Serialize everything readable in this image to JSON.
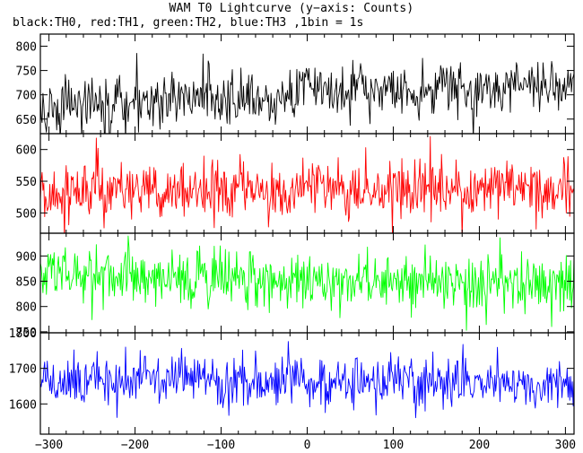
{
  "title": "WAM T0 Lightcurve (y−axis: Counts)",
  "subtitle": "black:TH0, red:TH1, green:TH2, blue:TH3 ,1bin = 1s",
  "chart_data": [
    {
      "type": "line",
      "title": "",
      "series": [
        {
          "name": "TH0",
          "color": "#000000",
          "profile": {
            "x": [
              -305,
              -250,
              -150,
              -50,
              0,
              100,
              200,
              310
            ],
            "mean": [
              672,
              680,
              690,
              693,
              715,
              705,
              710,
              720
            ]
          },
          "noise_sd": 28
        }
      ],
      "xlim": [
        -310,
        310
      ],
      "ylim": [
        620,
        825
      ],
      "yticks": [
        650,
        700,
        750,
        800
      ],
      "xlabel": "",
      "ylabel": ""
    },
    {
      "type": "line",
      "title": "",
      "series": [
        {
          "name": "TH1",
          "color": "#ff0000",
          "profile": {
            "x": [
              -305,
              0,
              310
            ],
            "mean": [
              535,
              537,
              535
            ]
          },
          "noise_sd": 22
        }
      ],
      "xlim": [
        -310,
        310
      ],
      "ylim": [
        468,
        625
      ],
      "yticks": [
        500,
        550,
        600
      ],
      "xlabel": "",
      "ylabel": ""
    },
    {
      "type": "line",
      "title": "",
      "series": [
        {
          "name": "TH2",
          "color": "#00ff00",
          "profile": {
            "x": [
              -305,
              0,
              310
            ],
            "mean": [
              858,
              857,
              845
            ]
          },
          "noise_sd": 28
        }
      ],
      "xlim": [
        -310,
        310
      ],
      "ylim": [
        748,
        945
      ],
      "yticks": [
        750,
        800,
        850,
        900
      ],
      "xlabel": "",
      "ylabel": ""
    },
    {
      "type": "line",
      "title": "",
      "series": [
        {
          "name": "TH3",
          "color": "#0000ff",
          "profile": {
            "x": [
              -305,
              0,
              310
            ],
            "mean": [
              1663,
              1662,
              1655
            ]
          },
          "noise_sd": 36
        }
      ],
      "xlim": [
        -310,
        310
      ],
      "ylim": [
        1515,
        1800
      ],
      "yticks": [
        1600,
        1700,
        1800
      ],
      "xticks": [
        -300,
        -200,
        -100,
        0,
        100,
        200,
        300
      ],
      "xlabel": "",
      "ylabel": ""
    }
  ]
}
